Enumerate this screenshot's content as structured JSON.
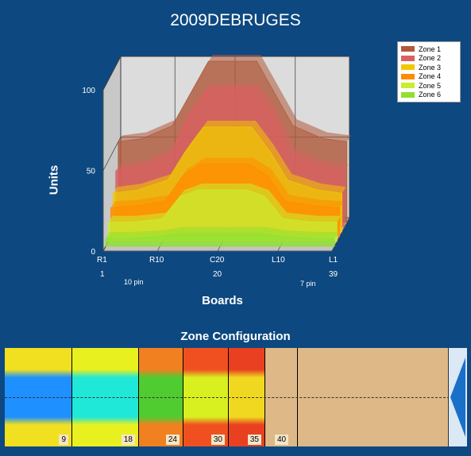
{
  "title": "2009DEBRUGES",
  "chart_data": {
    "type": "area",
    "title": "2009DEBRUGES",
    "xlabel": "Boards",
    "ylabel": "Units",
    "ylim": [
      0,
      100
    ],
    "yticks": [
      "0",
      "50",
      "100"
    ],
    "x_tick_labels": [
      "R1",
      "R10",
      "C20",
      "L10",
      "L1"
    ],
    "x_tick_numbers": [
      "1",
      "20",
      "39"
    ],
    "pin_labels": [
      "10 pin",
      "7 pin"
    ],
    "x": [
      1,
      5,
      10,
      13,
      16,
      20,
      24,
      27,
      30,
      35,
      39
    ],
    "series": [
      {
        "name": "Zone 1",
        "color": "#b05a3c",
        "values": [
          50,
          52,
          60,
          80,
          100,
          100,
          100,
          80,
          60,
          52,
          50
        ]
      },
      {
        "name": "Zone 2",
        "color": "#d96060",
        "values": [
          35,
          37,
          45,
          70,
          85,
          85,
          85,
          70,
          45,
          37,
          35
        ]
      },
      {
        "name": "Zone 3",
        "color": "#f0c800",
        "values": [
          24,
          26,
          32,
          50,
          65,
          65,
          65,
          50,
          32,
          26,
          24
        ]
      },
      {
        "name": "Zone 4",
        "color": "#ff8c00",
        "values": [
          18,
          19,
          22,
          38,
          45,
          45,
          45,
          38,
          22,
          19,
          18
        ]
      },
      {
        "name": "Zone 5",
        "color": "#c8ee30",
        "values": [
          12,
          12,
          14,
          28,
          32,
          32,
          32,
          28,
          14,
          12,
          12
        ]
      },
      {
        "name": "Zone 6",
        "color": "#90e030",
        "values": [
          5,
          5,
          6,
          8,
          8,
          8,
          8,
          8,
          6,
          5,
          5
        ]
      }
    ],
    "legend_position": "top-right"
  },
  "zone_config": {
    "title": "Zone Configuration",
    "markers": [
      "9",
      "18",
      "24",
      "30",
      "35",
      "40"
    ],
    "zones": [
      {
        "end": 9,
        "outer": "#f0e020",
        "inner": "#1e90ff"
      },
      {
        "end": 18,
        "outer": "#e8f020",
        "inner": "#20e8d8"
      },
      {
        "end": 24,
        "outer": "#f08020",
        "inner": "#50cc30"
      },
      {
        "end": 30,
        "outer": "#f05020",
        "inner": "#d8f020"
      },
      {
        "end": 35,
        "outer": "#e84020",
        "inner": "#f0d820"
      },
      {
        "end": 40,
        "outer": "#deb887",
        "inner": "#deb887"
      }
    ]
  }
}
